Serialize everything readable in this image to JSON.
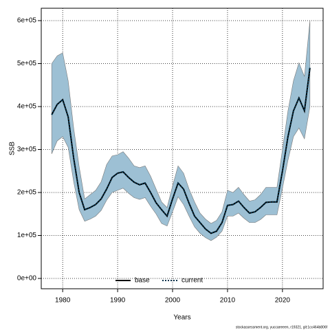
{
  "chart_data": {
    "type": "line",
    "x": [
      1978,
      1979,
      1980,
      1981,
      1982,
      1983,
      1984,
      1985,
      1986,
      1987,
      1988,
      1989,
      1990,
      1991,
      1992,
      1993,
      1994,
      1995,
      1996,
      1997,
      1998,
      1999,
      2000,
      2001,
      2002,
      2003,
      2004,
      2005,
      2006,
      2007,
      2008,
      2009,
      2010,
      2011,
      2012,
      2013,
      2014,
      2015,
      2016,
      2017,
      2018,
      2019,
      2020,
      2021,
      2022,
      2023,
      2024,
      2025
    ],
    "series": [
      {
        "name": "base",
        "color": "#000000",
        "style": "solid",
        "values": [
          381000,
          405000,
          416000,
          376000,
          280000,
          200000,
          160000,
          165000,
          172000,
          185000,
          208000,
          235000,
          245000,
          248000,
          235000,
          224000,
          218000,
          222000,
          200000,
          176000,
          160000,
          145000,
          185000,
          222000,
          208000,
          175000,
          145000,
          130000,
          115000,
          105000,
          110000,
          130000,
          170000,
          172000,
          180000,
          165000,
          152000,
          155000,
          165000,
          177000,
          178000,
          178000,
          250000,
          330000,
          390000,
          420000,
          390000,
          490000
        ]
      },
      {
        "name": "current",
        "color": "#00334d",
        "style": "dotted",
        "values": [
          381000,
          405000,
          416000,
          376000,
          280000,
          200000,
          160000,
          165000,
          172000,
          185000,
          208000,
          235000,
          245000,
          248000,
          235000,
          224000,
          218000,
          222000,
          200000,
          176000,
          160000,
          145000,
          185000,
          222000,
          208000,
          175000,
          145000,
          130000,
          115000,
          105000,
          110000,
          130000,
          170000,
          172000,
          180000,
          165000,
          152000,
          155000,
          165000,
          177000,
          178000,
          178000,
          250000,
          330000,
          390000,
          420000,
          390000,
          490000
        ],
        "upper": [
          500000,
          518000,
          525000,
          460000,
          350000,
          260000,
          185000,
          195000,
          205000,
          225000,
          265000,
          285000,
          288000,
          295000,
          280000,
          262000,
          258000,
          262000,
          238000,
          208000,
          178000,
          165000,
          215000,
          262000,
          245000,
          208000,
          178000,
          152000,
          138000,
          128000,
          135000,
          155000,
          205000,
          200000,
          212000,
          195000,
          180000,
          183000,
          195000,
          212000,
          212000,
          212000,
          300000,
          390000,
          460000,
          502000,
          470000,
          600000
        ],
        "lower": [
          290000,
          320000,
          330000,
          305000,
          225000,
          160000,
          133000,
          138000,
          145000,
          158000,
          182000,
          200000,
          205000,
          210000,
          198000,
          188000,
          184000,
          188000,
          168000,
          150000,
          128000,
          122000,
          155000,
          190000,
          172000,
          145000,
          120000,
          105000,
          95000,
          88000,
          96000,
          110000,
          145000,
          145000,
          152000,
          140000,
          130000,
          130000,
          137000,
          148000,
          148000,
          148000,
          210000,
          275000,
          330000,
          350000,
          325000,
          400000
        ],
        "band_color": "#9dc0d4"
      }
    ],
    "xlabel": "Years",
    "ylabel": "SSB",
    "xlim": [
      1976.1,
      2027.4
    ],
    "ylim": [
      -24000,
      628800
    ],
    "xticks": [
      1980,
      1990,
      2000,
      2010,
      2020
    ],
    "yticks": [
      {
        "value": 0,
        "label": "0e+00"
      },
      {
        "value": 100000,
        "label": "1e+05"
      },
      {
        "value": 200000,
        "label": "2e+05"
      },
      {
        "value": 300000,
        "label": "3e+05"
      },
      {
        "value": 400000,
        "label": "4e+05"
      },
      {
        "value": 500000,
        "label": "5e+05"
      },
      {
        "value": 600000,
        "label": "6e+05"
      }
    ],
    "grid": true,
    "legend": "bottom",
    "footnote": "stockassessment.org, yuccaeeeen, r19321, git:1cc464b806f"
  }
}
